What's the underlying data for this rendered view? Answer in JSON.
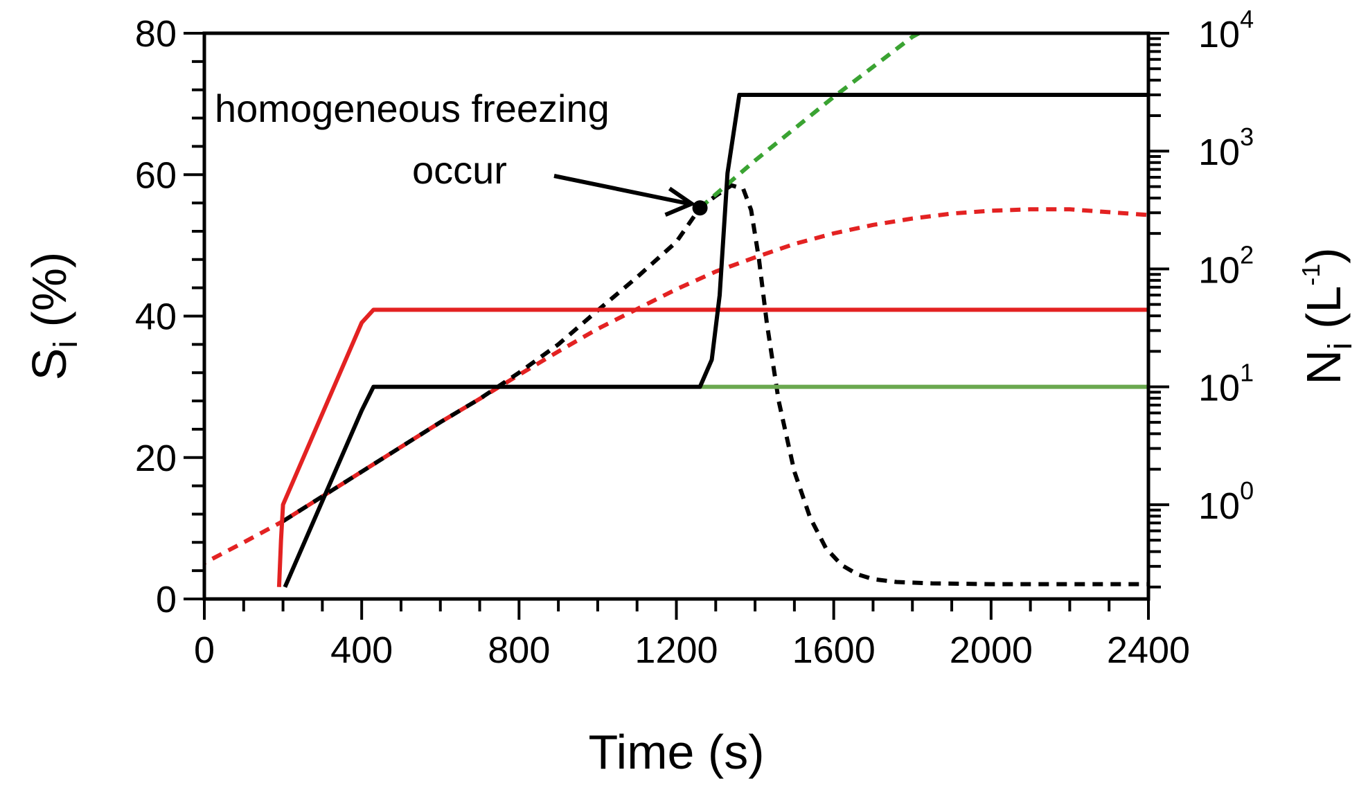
{
  "chart_data": {
    "type": "line",
    "title": "",
    "xlabel": "Time (s)",
    "ylabel_left": {
      "main": "S",
      "sub": "i",
      "rest": " (%)"
    },
    "ylabel_right": {
      "main": "N",
      "sub": "i",
      "rest_open": " (L",
      "sup": "-1",
      "rest_close": ")"
    },
    "xlim": [
      0,
      2400
    ],
    "ylim_left": [
      0,
      80
    ],
    "ylim_right_log10": [
      -0.8,
      4
    ],
    "x_ticks": [
      0,
      400,
      800,
      1200,
      1600,
      2000,
      2400
    ],
    "x_tick_labels": [
      "0",
      "400",
      "800",
      "1200",
      "1600",
      "2000",
      "2400"
    ],
    "y_ticks_left": [
      0,
      20,
      40,
      60,
      80
    ],
    "y_tick_labels_left": [
      "0",
      "20",
      "40",
      "60",
      "80"
    ],
    "y_ticks_right": [
      {
        "base": "10",
        "exp": "0",
        "value": 1
      },
      {
        "base": "10",
        "exp": "1",
        "value": 10
      },
      {
        "base": "10",
        "exp": "2",
        "value": 100
      },
      {
        "base": "10",
        "exp": "3",
        "value": 1000
      },
      {
        "base": "10",
        "exp": "4",
        "value": 10000
      }
    ],
    "grid": false,
    "series": [
      {
        "name": "red-dashed-Si",
        "axis": "left",
        "color": "#e32222",
        "style": "dashed",
        "x": [
          -20,
          100,
          200,
          300,
          400,
          500,
          600,
          700,
          800,
          900,
          1000,
          1100,
          1200,
          1300,
          1400,
          1500,
          1600,
          1700,
          1800,
          1900,
          2000,
          2100,
          2200,
          2300,
          2400
        ],
        "y": [
          4.5,
          8.0,
          11.0,
          14.5,
          18.0,
          21.5,
          25.0,
          28.3,
          31.7,
          35.0,
          38.2,
          41.0,
          43.8,
          46.3,
          48.3,
          50.2,
          51.7,
          52.9,
          53.8,
          54.5,
          54.9,
          55.1,
          55.1,
          54.7,
          54.3
        ]
      },
      {
        "name": "black-dashed-Si",
        "axis": "left",
        "color": "#000000",
        "style": "dashed",
        "x": [
          200,
          300,
          400,
          500,
          600,
          700,
          800,
          900,
          1000,
          1100,
          1200,
          1260,
          1300,
          1340,
          1370,
          1390,
          1410,
          1430,
          1460,
          1500,
          1540,
          1580,
          1620,
          1660,
          1700,
          1760,
          1850,
          2000,
          2200,
          2400
        ],
        "y": [
          11.0,
          14.5,
          18.0,
          21.5,
          25.0,
          28.3,
          32.0,
          36.0,
          40.8,
          45.5,
          50.5,
          55.3,
          57.0,
          58.5,
          58.0,
          55.0,
          48.0,
          39.0,
          28.0,
          18.0,
          11.5,
          7.2,
          4.8,
          3.5,
          2.8,
          2.4,
          2.2,
          2.1,
          2.1,
          2.1
        ]
      },
      {
        "name": "green-dashed-Si",
        "axis": "left",
        "color": "#3aa332",
        "style": "dashed",
        "x": [
          1260,
          1400,
          1600,
          1800,
          1850
        ],
        "y": [
          55.3,
          62.0,
          71.0,
          79.5,
          81.0
        ]
      },
      {
        "name": "red-solid-Ni",
        "axis": "right",
        "color": "#e32222",
        "style": "solid",
        "x": [
          190,
          195,
          200,
          400,
          430,
          2400
        ],
        "y": [
          0.2,
          0.5,
          1.0,
          35,
          45,
          45
        ]
      },
      {
        "name": "green-solid-Ni",
        "axis": "right",
        "color": "#6aa84f",
        "style": "solid",
        "x": [
          1260,
          2400
        ],
        "y": [
          10,
          10
        ]
      },
      {
        "name": "black-solid-Ni",
        "axis": "right",
        "color": "#000000",
        "style": "solid",
        "x": [
          205,
          400,
          430,
          1260,
          1290,
          1310,
          1330,
          1360,
          2400
        ],
        "y": [
          0.2,
          6.3,
          10,
          10,
          17,
          60,
          650,
          3000,
          3000
        ]
      }
    ],
    "annotations": [
      {
        "line1": "homogeneous freezing",
        "line2": "occur",
        "x": 1260,
        "y": 55.3,
        "axis": "left"
      }
    ]
  }
}
